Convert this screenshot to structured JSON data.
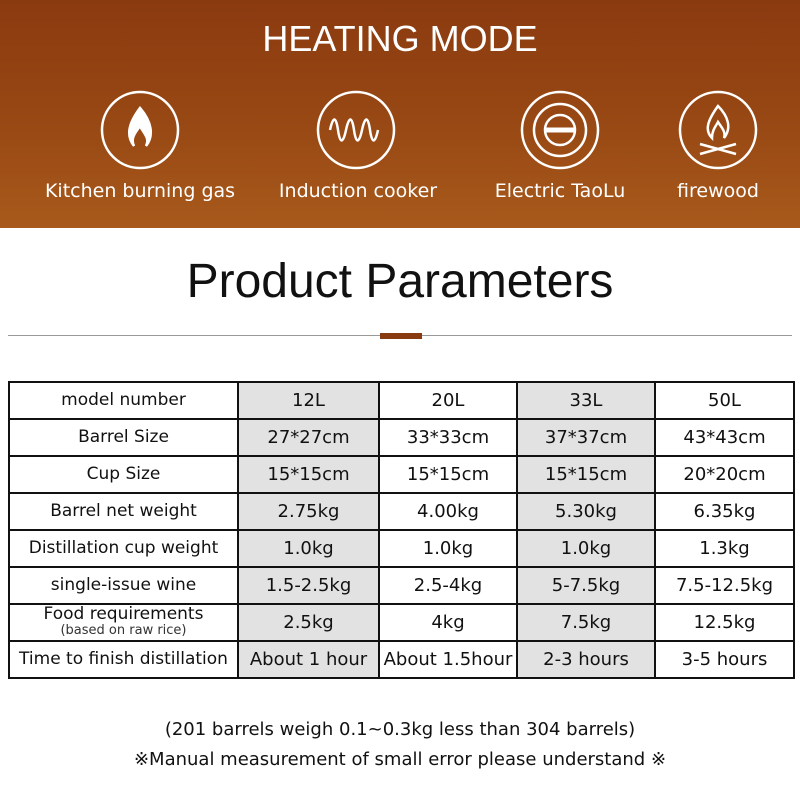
{
  "header": {
    "title": "HEATING MODE",
    "modes": [
      "Kitchen burning gas",
      "Induction cooker",
      "Electric TaoLu",
      "firewood"
    ]
  },
  "section_title": "Product Parameters",
  "table": {
    "columns": [
      "model number",
      "12L",
      "20L",
      "33L",
      "50L"
    ],
    "rows": [
      {
        "label": "Barrel Size",
        "cells": [
          "27*27cm",
          "33*33cm",
          "37*37cm",
          "43*43cm"
        ]
      },
      {
        "label": "Cup Size",
        "cells": [
          "15*15cm",
          "15*15cm",
          "15*15cm",
          "20*20cm"
        ]
      },
      {
        "label": "Barrel net weight",
        "cells": [
          "2.75kg",
          "4.00kg",
          "5.30kg",
          "6.35kg"
        ]
      },
      {
        "label": "Distillation cup weight",
        "cells": [
          "1.0kg",
          "1.0kg",
          "1.0kg",
          "1.3kg"
        ]
      },
      {
        "label": "single-issue wine",
        "cells": [
          "1.5-2.5kg",
          "2.5-4kg",
          "5-7.5kg",
          "7.5-12.5kg"
        ]
      },
      {
        "label": "Food requirements",
        "sublabel": "(based on raw rice)",
        "cells": [
          "2.5kg",
          "4kg",
          "7.5kg",
          "12.5kg"
        ]
      },
      {
        "label": "Time to finish distillation",
        "cells": [
          "About 1 hour",
          "About 1.5hour",
          "2-3 hours",
          "3-5 hours"
        ]
      }
    ]
  },
  "notes": [
    "(201 barrels weigh 0.1~0.3kg less than 304 barrels)",
    "※Manual measurement of small error please understand ※"
  ]
}
